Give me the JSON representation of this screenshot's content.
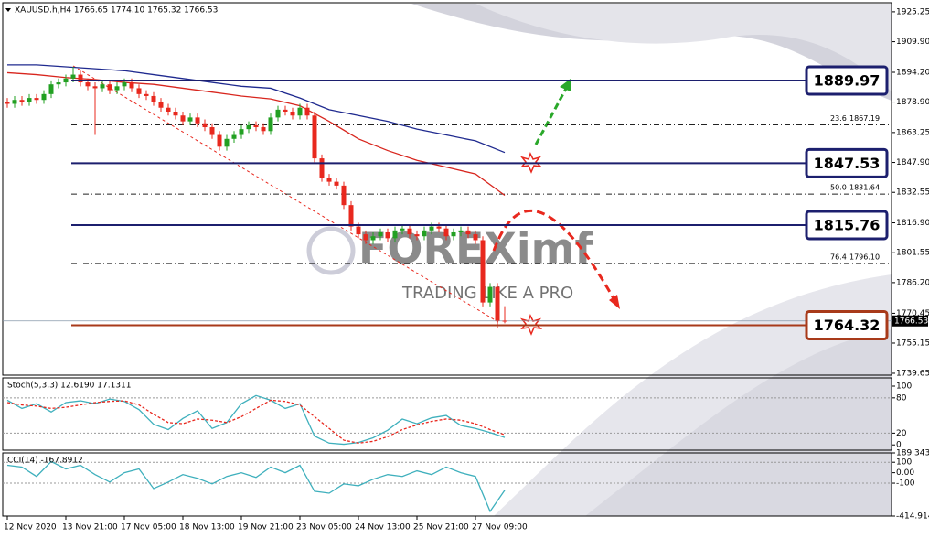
{
  "chart_data": [
    {
      "type": "candlestick",
      "title": "XAUUSD.h,H4  1766.65 1774.10 1765.32 1766.53",
      "categories": [
        "12 Nov 2020",
        null,
        null,
        null,
        null,
        null,
        null,
        null,
        "13 Nov 21:00",
        null,
        null,
        null,
        null,
        null,
        null,
        null,
        "17 Nov 05:00",
        null,
        null,
        null,
        null,
        null,
        null,
        null,
        "18 Nov 13:00",
        null,
        null,
        null,
        null,
        null,
        null,
        null,
        "19 Nov 21:00",
        null,
        null,
        null,
        null,
        null,
        null,
        null,
        "23 Nov 05:00",
        null,
        null,
        null,
        null,
        null,
        null,
        null,
        "24 Nov 13:00",
        null,
        null,
        null,
        null,
        null,
        null,
        null,
        "25 Nov 21:00",
        null,
        null,
        null,
        null,
        null,
        null,
        null,
        "27 Nov 09:00",
        null,
        null,
        null,
        null
      ],
      "open": [
        1879,
        1878,
        1880,
        1879,
        1881,
        1880,
        1883,
        1888,
        1889,
        1891,
        1893,
        1889,
        1887,
        1886,
        1888,
        1885,
        1887,
        1889,
        1886,
        1883,
        1882,
        1879,
        1876,
        1874,
        1872,
        1869,
        1871,
        1868,
        1866,
        1862,
        1856,
        1860,
        1862,
        1865,
        1867,
        1866,
        1864,
        1871,
        1875,
        1874,
        1872,
        1876,
        1872,
        1850,
        1840,
        1838,
        1836,
        1826,
        1815,
        1811,
        1808,
        1810,
        1812,
        1809,
        1813,
        1814,
        1811,
        1810,
        1813,
        1815,
        1814,
        1810,
        1812,
        1813,
        1811,
        1808,
        1776,
        1784,
        1766.65
      ],
      "high": [
        1881,
        1882,
        1882,
        1883,
        1883,
        1885,
        1890,
        1891,
        1893,
        1897,
        1895,
        1891,
        1889,
        1890,
        1890,
        1889,
        1891,
        1891,
        1888,
        1885,
        1884,
        1881,
        1878,
        1876,
        1874,
        1873,
        1873,
        1870,
        1868,
        1864,
        1862,
        1864,
        1867,
        1869,
        1869,
        1868,
        1873,
        1877,
        1877,
        1876,
        1878,
        1878,
        1874,
        1852,
        1842,
        1840,
        1838,
        1828,
        1817,
        1813,
        1812,
        1814,
        1814,
        1815,
        1816,
        1816,
        1813,
        1815,
        1817,
        1817,
        1816,
        1814,
        1815,
        1815,
        1813,
        1810,
        1786,
        1786,
        1774.1
      ],
      "low": [
        1876,
        1876,
        1877,
        1877,
        1878,
        1878,
        1881,
        1886,
        1887,
        1889,
        1887,
        1885,
        1862,
        1884,
        1883,
        1883,
        1885,
        1884,
        1881,
        1880,
        1877,
        1874,
        1872,
        1870,
        1867,
        1867,
        1866,
        1864,
        1860,
        1854,
        1854,
        1858,
        1860,
        1863,
        1864,
        1862,
        1862,
        1869,
        1872,
        1870,
        1870,
        1870,
        1848,
        1838,
        1836,
        1834,
        1824,
        1813,
        1809,
        1806,
        1806,
        1808,
        1807,
        1807,
        1811,
        1809,
        1808,
        1808,
        1811,
        1812,
        1808,
        1808,
        1810,
        1809,
        1806,
        1774,
        1774,
        1763,
        1765.32
      ],
      "close": [
        1878,
        1880,
        1879,
        1881,
        1880,
        1883,
        1888,
        1889,
        1891,
        1893,
        1889,
        1887,
        1886,
        1888,
        1885,
        1887,
        1889,
        1886,
        1883,
        1882,
        1879,
        1876,
        1874,
        1872,
        1869,
        1871,
        1868,
        1866,
        1862,
        1856,
        1860,
        1862,
        1865,
        1867,
        1866,
        1864,
        1871,
        1875,
        1874,
        1872,
        1876,
        1872,
        1850,
        1840,
        1838,
        1836,
        1826,
        1815,
        1811,
        1808,
        1810,
        1812,
        1809,
        1813,
        1814,
        1811,
        1810,
        1813,
        1815,
        1814,
        1810,
        1812,
        1813,
        1811,
        1808,
        1776,
        1784,
        1766.65,
        1766.53
      ],
      "up_color": "#22a022",
      "down_color": "#e8281e",
      "ylim": [
        1738.7,
        1929.9
      ],
      "yticks": [
        1925.25,
        {
          "value": 1909.9,
          "label": "1909.90"
        },
        {
          "value": 1894.2,
          "label": "1894.20"
        },
        {
          "value": 1878.9,
          "label": "1878.90"
        },
        1863.25,
        {
          "value": 1847.9,
          "label": "1847.90"
        },
        1832.55,
        {
          "value": 1816.9,
          "label": "1816.90"
        },
        1801.55,
        {
          "value": 1786.2,
          "label": "1786.20"
        },
        1770.45,
        1755.15,
        1739.65
      ],
      "series": [
        {
          "color": "#1f2a8f",
          "x": [
            0,
            4,
            8,
            12,
            16,
            20,
            24,
            28,
            32,
            36,
            40,
            44,
            48,
            52,
            56,
            60,
            64,
            68
          ],
          "values": [
            1898,
            1898,
            1897,
            1896,
            1895,
            1893,
            1891,
            1889,
            1887,
            1886,
            1881,
            1875,
            1872,
            1869,
            1865,
            1862,
            1859,
            1853
          ]
        },
        {
          "color": "#d8261e",
          "x": [
            0,
            4,
            8,
            12,
            16,
            20,
            24,
            28,
            32,
            36,
            40,
            44,
            48,
            52,
            56,
            60,
            64,
            68
          ],
          "values": [
            1894,
            1893,
            1891.5,
            1890.5,
            1889,
            1888,
            1886,
            1884,
            1882,
            1880.5,
            1877,
            1869,
            1860,
            1854,
            1849,
            1845.5,
            1842,
            1831
          ]
        }
      ],
      "levels": [
        {
          "value": 1889.97,
          "color": "#1c1f6e"
        },
        {
          "value": 1847.53,
          "color": "#1c1f6e"
        },
        {
          "value": 1815.76,
          "color": "#1c1f6e"
        },
        {
          "value": 1764.32,
          "color": "#a83a1a"
        }
      ],
      "fibonacci": [
        {
          "ratio": "23.6",
          "value": 1867.19
        },
        {
          "ratio": "50.0",
          "value": 1831.64
        },
        {
          "ratio": "76.4",
          "value": {
            "value": 1796.1,
            "label": "1796.10"
          }
        }
      ],
      "last_price": 1766.53,
      "watermark": {
        "brand": "FOREXimf",
        "slogan": "TRADING LIKE A PRO"
      }
    },
    {
      "type": "line",
      "title": "Stoch(5,3,3) 12.6190 17.1311",
      "ylim": [
        -9,
        114
      ],
      "yticks": [
        100,
        80,
        20,
        0
      ],
      "levels": [
        80,
        20
      ],
      "series": [
        {
          "color": "#3fb0bd",
          "x": [
            0,
            2,
            4,
            6,
            8,
            10,
            12,
            14,
            16,
            18,
            20,
            22,
            24,
            26,
            28,
            30,
            32,
            34,
            36,
            38,
            40,
            42,
            44,
            46,
            48,
            50,
            52,
            54,
            56,
            58,
            60,
            62,
            64,
            66,
            68
          ],
          "values": [
            76,
            62,
            70,
            56,
            72,
            75,
            70,
            78,
            74,
            60,
            35,
            26,
            45,
            58,
            28,
            38,
            70,
            84,
            76,
            62,
            70,
            15,
            3,
            1,
            4,
            12,
            25,
            44,
            36,
            46,
            50,
            33,
            28,
            21,
            12.619
          ]
        },
        {
          "color": "#e8281e",
          "dash": true,
          "x": [
            0,
            2,
            4,
            6,
            8,
            10,
            12,
            14,
            16,
            18,
            20,
            22,
            24,
            26,
            28,
            30,
            32,
            34,
            36,
            38,
            40,
            42,
            44,
            46,
            48,
            50,
            52,
            54,
            56,
            58,
            60,
            62,
            64,
            66,
            68
          ],
          "values": [
            72,
            68,
            66,
            62,
            64,
            68,
            72,
            74,
            75,
            68,
            52,
            38,
            36,
            44,
            42,
            38,
            48,
            62,
            76,
            74,
            68,
            48,
            28,
            8,
            3,
            6,
            14,
            26,
            34,
            40,
            44,
            42,
            36,
            26,
            17.1311
          ]
        }
      ]
    },
    {
      "type": "line",
      "title": "CCI(14) -167.8912",
      "ylim": [
        -414.914,
        189.343
      ],
      "yticks": [
        189.343,
        100,
        {
          "value": 0,
          "label": "0.00"
        },
        -100,
        -414.914
      ],
      "levels": [
        100,
        -100
      ],
      "series": [
        {
          "color": "#3fb0bd",
          "x": [
            0,
            2,
            4,
            6,
            8,
            10,
            12,
            14,
            16,
            18,
            20,
            22,
            24,
            26,
            28,
            30,
            32,
            34,
            36,
            38,
            40,
            42,
            44,
            46,
            48,
            50,
            52,
            54,
            56,
            58,
            60,
            62,
            64,
            66,
            68
          ],
          "values": [
            71,
            54,
            -36,
            107,
            36,
            71,
            -18,
            -89,
            0,
            36,
            -152,
            -89,
            -18,
            -54,
            -107,
            -36,
            0,
            -45,
            54,
            0,
            71,
            -178,
            -196,
            -107,
            -125,
            -63,
            -18,
            -36,
            18,
            -18,
            54,
            0,
            -36,
            -370,
            -167.8912
          ]
        }
      ]
    }
  ]
}
